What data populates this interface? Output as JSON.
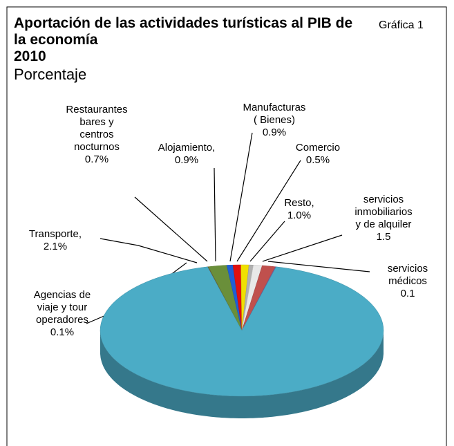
{
  "chart_data": {
    "type": "pie",
    "title": "Aportación de las actividades turísticas al PIB de la economía",
    "subtitle": "2010",
    "unit_label": "Porcentaje",
    "figure_label": "Gráfica 1",
    "categories": [
      "Agencias de\nviaje y tour\noperadores",
      "Transporte,",
      "Restaurantes\nbares y\ncentros\nnocturnos",
      "Alojamiento,",
      "Manufacturas\n( Bienes)",
      "Comercio",
      "Resto,",
      "servicios\ninmobiliarios\ny de alquiler",
      "servicios\nmédicos",
      null
    ],
    "values": [
      0.1,
      2.1,
      0.7,
      0.9,
      0.9,
      0.5,
      1.0,
      1.5,
      0.1,
      92.2
    ],
    "value_labels": [
      "0.1%",
      "2.1%",
      "0.7%",
      "0.9%",
      "0.9%",
      "0.5%",
      "1.0%",
      "1.5",
      "0.1",
      null
    ],
    "colors": [
      "#7b4a2a",
      "#6a8f3a",
      "#1f5fd6",
      "#e01010",
      "#f0e000",
      "#b0b0b0",
      "#e8e8e8",
      "#c0504d",
      "#7f5fa0",
      "#4bacc6"
    ]
  }
}
